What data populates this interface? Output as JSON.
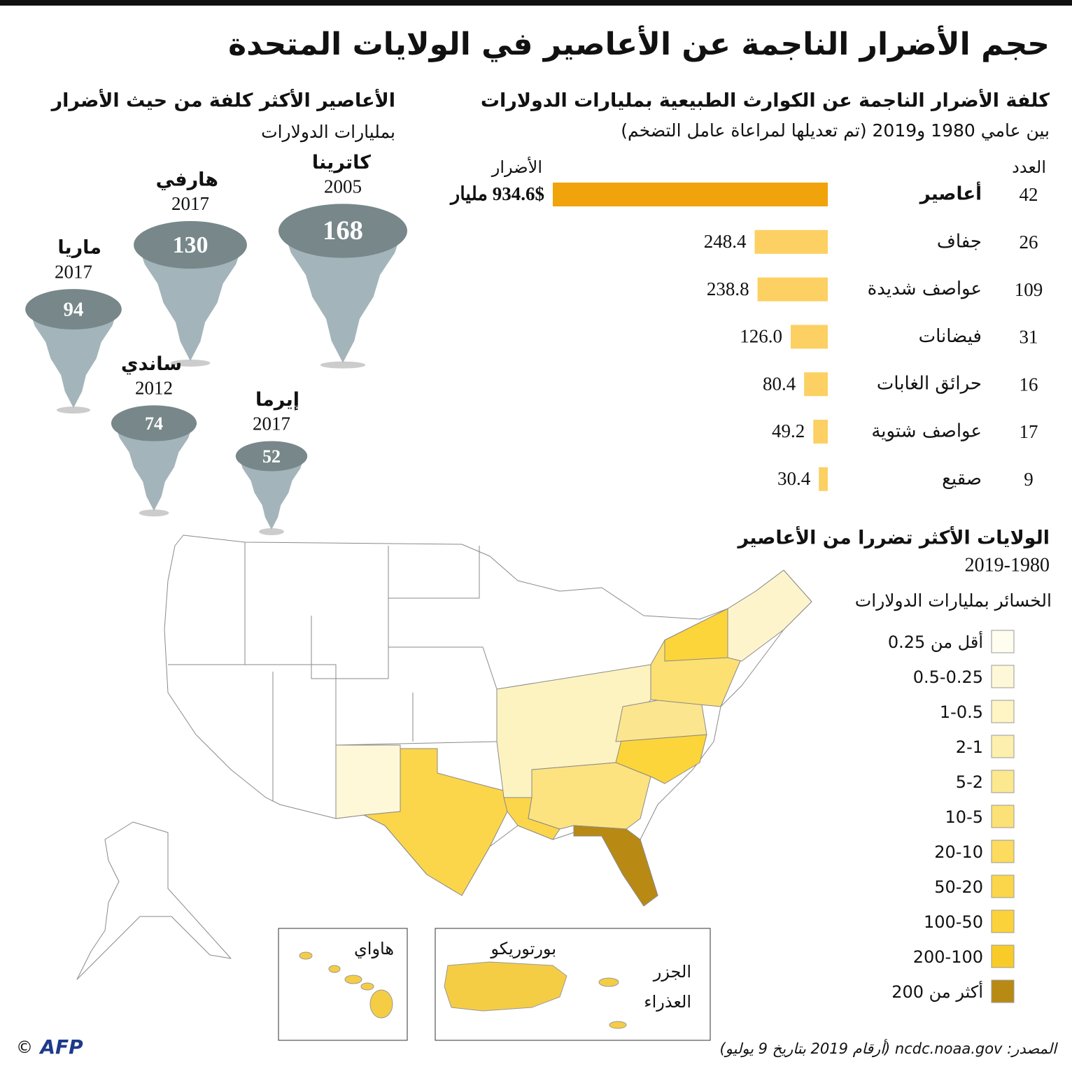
{
  "title": "حجم الأضرار الناجمة عن الأعاصير في الولايات المتحدة",
  "source": "المصدر: ncdc.noaa.gov (أرقام 2019 بتاريخ 9 يوليو)",
  "credit": "AFP",
  "copyright": "©",
  "chart_data": [
    {
      "type": "bar",
      "title": "كلفة الأضرار الناجمة عن الكوارث الطبيعية بمليارات الدولارات",
      "subtitle": "بين عامي 1980 و2019 (تم تعديلها لمراعاة عامل التضخم)",
      "count_header": "العدد",
      "value_header": "الأضرار",
      "categories": [
        "أعاصير",
        "جفاف",
        "عواصف شديدة",
        "فيضانات",
        "حرائق الغابات",
        "عواصف شتوية",
        "صقيع"
      ],
      "counts": [
        42,
        26,
        109,
        31,
        16,
        17,
        9
      ],
      "values": [
        934.6,
        248.4,
        238.8,
        126.0,
        80.4,
        49.2,
        30.4
      ],
      "value_labels": [
        "934.6$ مليار",
        "248.4",
        "238.8",
        "126.0",
        "80.4",
        "49.2",
        "30.4"
      ],
      "colors": [
        "#f0a30a",
        "#fcd062",
        "#fcd062",
        "#fcd062",
        "#fcd062",
        "#fcd062",
        "#fcd062"
      ]
    },
    {
      "type": "bubble",
      "title": "الأعاصير الأكثر كلفة من حيث الأضرار",
      "subtitle": "بمليارات الدولارات",
      "categories": [
        "كاترينا",
        "هارفي",
        "ماريا",
        "ساندي",
        "إيرما"
      ],
      "years": [
        2005,
        2017,
        2017,
        2012,
        2017
      ],
      "values": [
        168,
        130,
        94,
        74,
        52
      ],
      "color": "#77878a",
      "funnel_color": "#a3b5ba"
    },
    {
      "type": "choropleth",
      "title": "الولايات الأكثر تضررا من الأعاصير",
      "subtitle": "2019-1980",
      "legend_title": "الخسائر بمليارات الدولارات",
      "legend": [
        {
          "label": "أقل من 0.25",
          "color": "#fffdf0"
        },
        {
          "label": "0.5-0.25",
          "color": "#fef8d8"
        },
        {
          "label": "1-0.5",
          "color": "#fef4c4"
        },
        {
          "label": "2-1",
          "color": "#fdefad"
        },
        {
          "label": "5-2",
          "color": "#fce88f"
        },
        {
          "label": "10-5",
          "color": "#fce176"
        },
        {
          "label": "20-10",
          "color": "#fcdb5e"
        },
        {
          "label": "50-20",
          "color": "#fcd64a"
        },
        {
          "label": "100-50",
          "color": "#fcd23a"
        },
        {
          "label": "200-100",
          "color": "#f9cb28"
        },
        {
          "label": "أكثر من 200",
          "color": "#b88a14"
        }
      ],
      "insets": [
        "هاواي",
        "بورتوريكو",
        "الجزر",
        "العذراء"
      ]
    }
  ]
}
